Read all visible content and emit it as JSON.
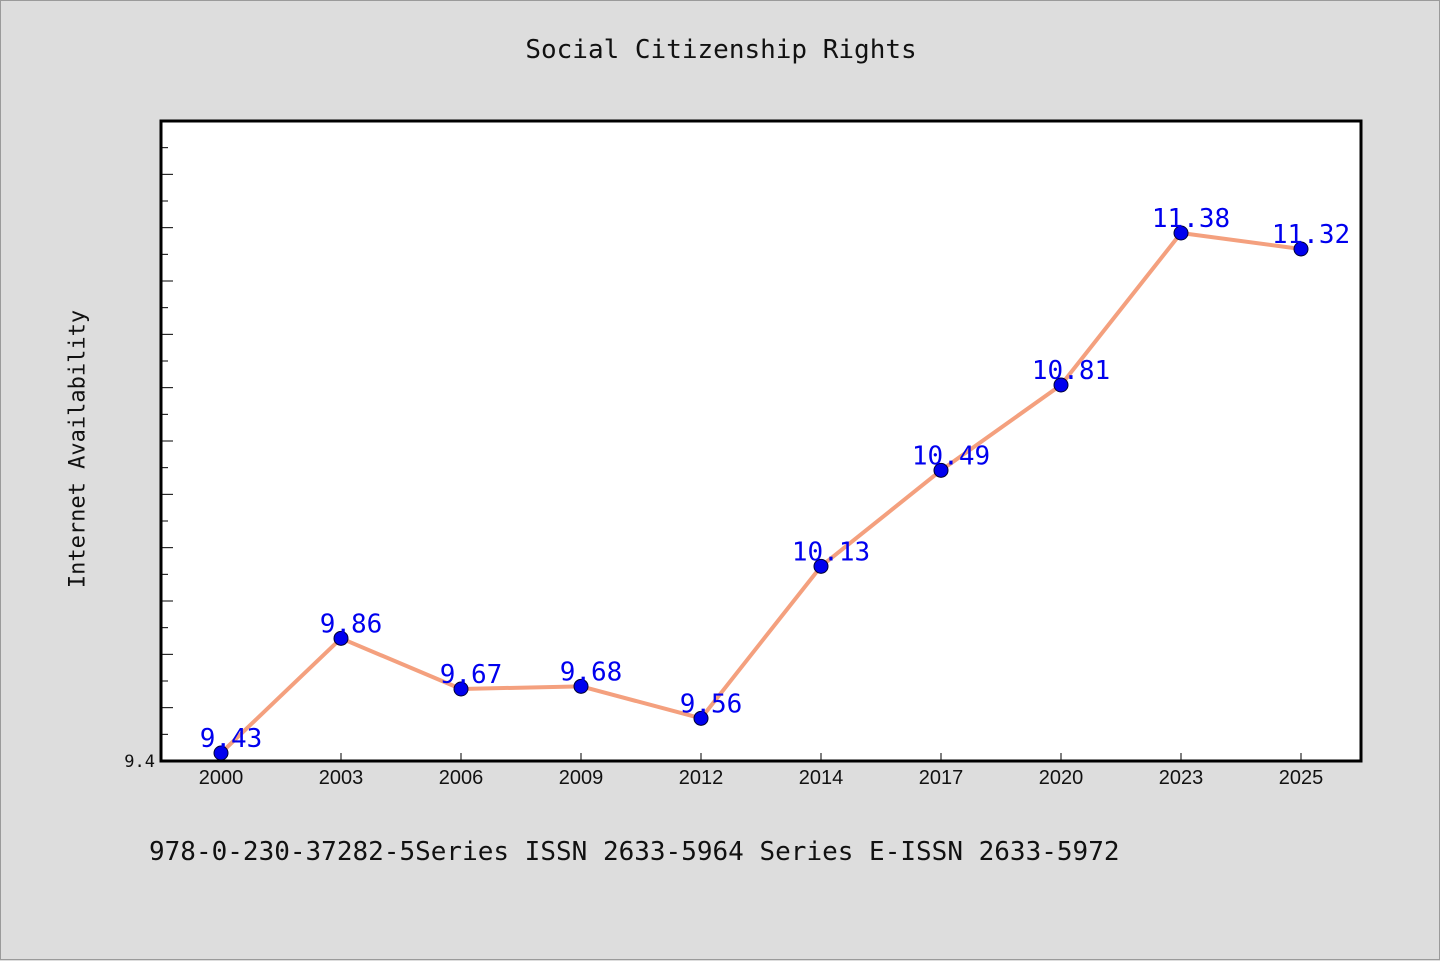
{
  "chart_data": {
    "type": "line",
    "title": "Social Citizenship Rights",
    "xlabel": "",
    "ylabel": "Internet Availability",
    "categories": [
      "2000",
      "2003",
      "2006",
      "2009",
      "2012",
      "2014",
      "2017",
      "2020",
      "2023",
      "2025"
    ],
    "series": [
      {
        "values": [
          9.43,
          9.86,
          9.67,
          9.68,
          9.56,
          10.13,
          10.49,
          10.81,
          11.38,
          11.32
        ]
      }
    ],
    "data_labels": [
      "9.43",
      "9.86",
      "9.67",
      "9.68",
      "9.56",
      "10.13",
      "10.49",
      "10.81",
      "11.38",
      "11.32"
    ],
    "ylim": [
      9.4,
      11.8
    ],
    "yticks_labeled": [
      "9.4"
    ],
    "grid": false,
    "legend": "none",
    "colors": {
      "line": "#f4a07e",
      "marker": "#0000ee",
      "label": "#0000ee",
      "frame": "#000000",
      "plot_bg": "#ffffff",
      "figure_bg": "#dddddd"
    }
  },
  "footnote": "978-0-230-37282-5Series ISSN 2633-5964 Series E-ISSN 2633-5972"
}
